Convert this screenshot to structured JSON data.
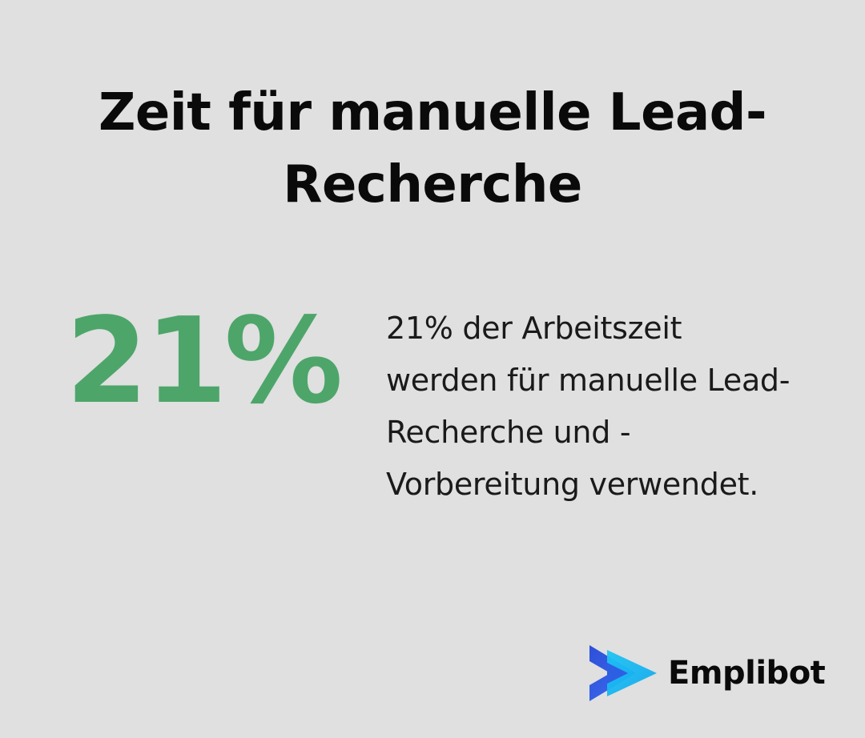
{
  "card": {
    "title": "Zeit für manuelle Lead-Recherche",
    "stat_value": "21%",
    "description": "21% der Arbeitszeit werden für manuelle Lead-Recherche und -Vorbereitung verwendet."
  },
  "brand": {
    "name": "Emplibot",
    "logo_icon": "play-arrow-logo-icon"
  },
  "colors": {
    "background": "#dfe0df",
    "stat_green": "#4da56a",
    "logo_blue": "#3b5ee6",
    "logo_cyan": "#19b6f0"
  }
}
